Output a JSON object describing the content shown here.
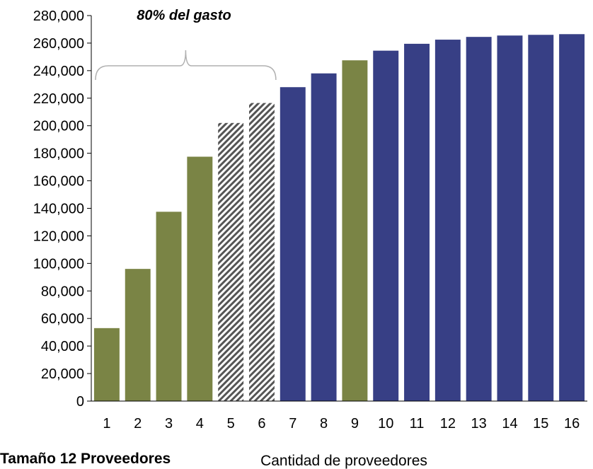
{
  "chart_data": {
    "type": "bar",
    "title": "",
    "xlabel": "Cantidad de proveedores",
    "ylabel": "",
    "ylim": [
      0,
      280000
    ],
    "ytick_step": 20000,
    "grid": false,
    "categories": [
      "1",
      "2",
      "3",
      "4",
      "5",
      "6",
      "7",
      "8",
      "9",
      "10",
      "11",
      "12",
      "13",
      "14",
      "15",
      "16"
    ],
    "values": [
      53000,
      96000,
      137500,
      177500,
      202000,
      216500,
      228000,
      238000,
      247500,
      254500,
      259500,
      262500,
      264500,
      265500,
      266000,
      266500
    ],
    "bar_styles": [
      "olive",
      "olive",
      "olive",
      "olive",
      "hatched",
      "hatched",
      "navy",
      "navy",
      "olive",
      "navy",
      "navy",
      "navy",
      "navy",
      "navy",
      "navy",
      "navy"
    ],
    "annotations": [
      {
        "text": "80% del gasto",
        "bracket_categories": [
          "1",
          "6"
        ]
      }
    ]
  },
  "colors": {
    "olive": "#7a8445",
    "navy": "#373f85",
    "hatch_dark": "#555555",
    "hatch_light": "#ffffff",
    "axis": "#000000",
    "bracket": "#b0b0b0"
  },
  "footer": {
    "text": "Tamaño 12 Proveedores"
  }
}
